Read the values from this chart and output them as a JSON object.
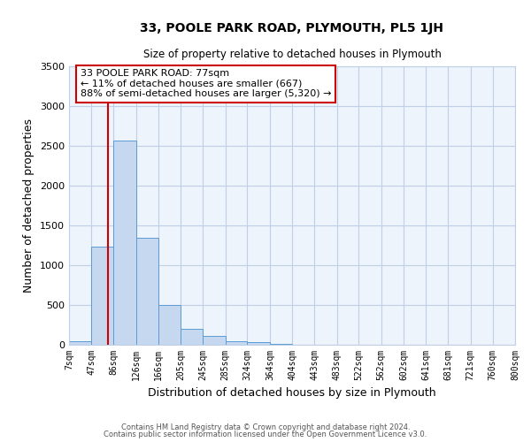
{
  "title": "33, POOLE PARK ROAD, PLYMOUTH, PL5 1JH",
  "subtitle": "Size of property relative to detached houses in Plymouth",
  "xlabel": "Distribution of detached houses by size in Plymouth",
  "ylabel": "Number of detached properties",
  "bar_color": "#c5d8f0",
  "bar_edge_color": "#5b9bd5",
  "grid_color": "#c0cfe8",
  "background_color": "#eef4fb",
  "vline_x": 77,
  "vline_color": "#cc0000",
  "annotation_box_color": "#cc0000",
  "annotation_line1": "33 POOLE PARK ROAD: 77sqm",
  "annotation_line2": "← 11% of detached houses are smaller (667)",
  "annotation_line3": "88% of semi-detached houses are larger (5,320) →",
  "bin_edges": [
    7,
    47,
    86,
    126,
    166,
    205,
    245,
    285,
    324,
    364,
    404,
    443,
    483,
    522,
    562,
    602,
    641,
    681,
    721,
    760,
    800
  ],
  "bin_heights": [
    50,
    1230,
    2570,
    1340,
    500,
    200,
    110,
    50,
    30,
    10,
    5,
    3,
    2,
    1,
    1,
    1,
    0,
    0,
    0,
    0
  ],
  "tick_labels": [
    "7sqm",
    "47sqm",
    "86sqm",
    "126sqm",
    "166sqm",
    "205sqm",
    "245sqm",
    "285sqm",
    "324sqm",
    "364sqm",
    "404sqm",
    "443sqm",
    "483sqm",
    "522sqm",
    "562sqm",
    "602sqm",
    "641sqm",
    "681sqm",
    "721sqm",
    "760sqm",
    "800sqm"
  ],
  "ylim": [
    0,
    3500
  ],
  "yticks": [
    0,
    500,
    1000,
    1500,
    2000,
    2500,
    3000,
    3500
  ],
  "footer_line1": "Contains HM Land Registry data © Crown copyright and database right 2024.",
  "footer_line2": "Contains public sector information licensed under the Open Government Licence v3.0."
}
